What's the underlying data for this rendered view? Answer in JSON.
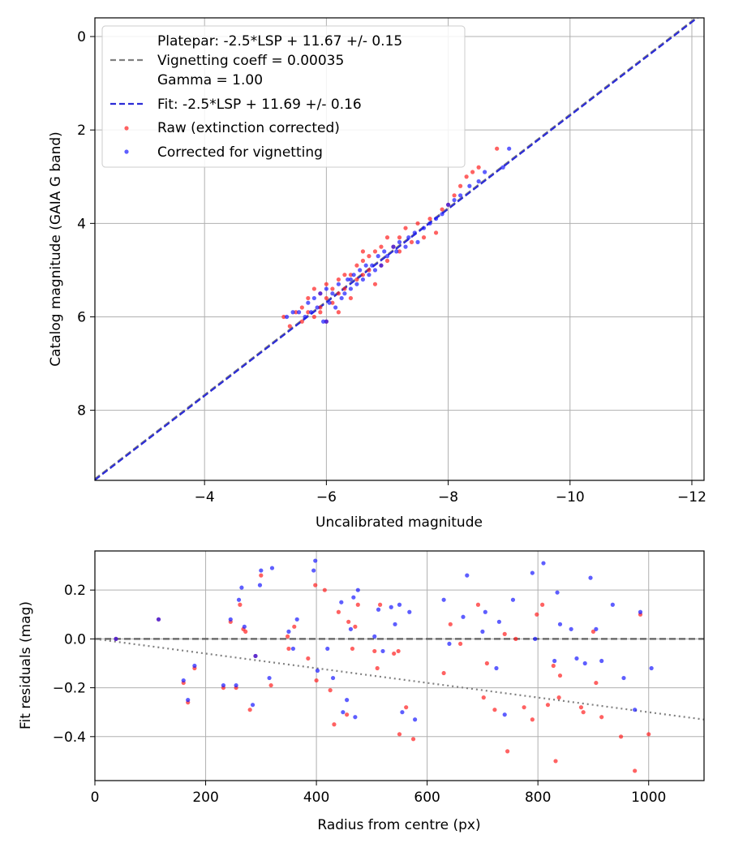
{
  "chart_data": [
    {
      "type": "scatter",
      "title": "",
      "xlabel": "Uncalibrated magnitude",
      "ylabel": "Catalog magnitude (GAIA G band)",
      "xlim": [
        -2.2,
        -12.2
      ],
      "ylim": [
        9.5,
        -0.4
      ],
      "xticks": [
        -4,
        -6,
        -8,
        -10,
        -12
      ],
      "xtick_labels": [
        "−4",
        "−6",
        "−8",
        "−10",
        "−12"
      ],
      "yticks": [
        0,
        2,
        4,
        6,
        8
      ],
      "ytick_labels": [
        "0",
        "2",
        "4",
        "6",
        "8"
      ],
      "grid": true,
      "legend_position": "top-left",
      "legend": {
        "platepar_line1": "Platepar: -2.5*LSP + 11.67 +/- 0.15",
        "platepar_line2": "Vignetting coeff = 0.00035",
        "platepar_line3": "Gamma = 1.00",
        "fit": "Fit: -2.5*LSP + 11.69 +/- 0.16",
        "raw": "Raw (extinction corrected)",
        "corrected": "Corrected for vignetting"
      },
      "lines": [
        {
          "name": "Platepar",
          "slope": 1,
          "intercept": 11.67,
          "color": "#808080",
          "style": "dashed"
        },
        {
          "name": "Fit",
          "slope": 1,
          "intercept": 11.69,
          "color": "#2b2bd6",
          "style": "dashed"
        }
      ],
      "series": [
        {
          "name": "Raw (extinction corrected)",
          "color": "#ff2020",
          "x": [
            -5.3,
            -5.4,
            -5.5,
            -5.6,
            -5.6,
            -5.7,
            -5.7,
            -5.8,
            -5.8,
            -5.9,
            -5.9,
            -6.0,
            -6.0,
            -6.0,
            -6.1,
            -6.1,
            -6.2,
            -6.2,
            -6.2,
            -6.3,
            -6.3,
            -6.4,
            -6.4,
            -6.5,
            -6.5,
            -6.6,
            -6.6,
            -6.7,
            -6.7,
            -6.8,
            -6.8,
            -6.9,
            -6.9,
            -7.0,
            -7.0,
            -7.1,
            -7.2,
            -7.2,
            -7.3,
            -7.4,
            -7.5,
            -7.6,
            -7.7,
            -7.8,
            -7.9,
            -8.0,
            -8.1,
            -8.2,
            -8.3,
            -8.4,
            -8.5,
            -8.8,
            -6.6,
            -5.9
          ],
          "y": [
            6.0,
            6.2,
            5.9,
            5.8,
            6.1,
            5.6,
            5.9,
            5.4,
            6.0,
            5.5,
            5.8,
            5.3,
            5.6,
            6.1,
            5.4,
            5.7,
            5.2,
            5.5,
            5.9,
            5.1,
            5.4,
            5.1,
            5.6,
            4.9,
            5.2,
            4.8,
            5.1,
            4.7,
            5.0,
            4.6,
            5.3,
            4.5,
            4.9,
            4.3,
            4.8,
            4.5,
            4.3,
            4.6,
            4.1,
            4.4,
            4.0,
            4.3,
            3.9,
            4.2,
            3.7,
            3.6,
            3.4,
            3.2,
            3.0,
            2.9,
            2.8,
            2.4,
            4.6,
            5.9
          ]
        },
        {
          "name": "Corrected for vignetting",
          "color": "#1a1aff",
          "x": [
            -5.35,
            -5.45,
            -5.55,
            -5.65,
            -5.7,
            -5.75,
            -5.8,
            -5.85,
            -5.9,
            -5.95,
            -6.0,
            -6.05,
            -6.1,
            -6.15,
            -6.2,
            -6.25,
            -6.3,
            -6.35,
            -6.4,
            -6.45,
            -6.5,
            -6.55,
            -6.6,
            -6.65,
            -6.7,
            -6.75,
            -6.8,
            -6.85,
            -6.9,
            -6.95,
            -7.0,
            -7.1,
            -7.15,
            -7.2,
            -7.3,
            -7.35,
            -7.45,
            -7.5,
            -7.6,
            -7.7,
            -7.8,
            -7.9,
            -8.0,
            -8.1,
            -8.2,
            -8.35,
            -8.5,
            -8.6,
            -8.9,
            -9.0,
            -6.0,
            -6.4
          ],
          "y": [
            6.0,
            5.9,
            5.9,
            6.0,
            5.7,
            5.9,
            5.6,
            5.8,
            5.5,
            6.1,
            5.4,
            5.7,
            5.5,
            5.8,
            5.3,
            5.6,
            5.5,
            5.2,
            5.4,
            5.1,
            5.3,
            5.0,
            5.2,
            4.9,
            5.1,
            4.9,
            5.0,
            4.7,
            4.9,
            4.6,
            4.7,
            4.5,
            4.6,
            4.4,
            4.5,
            4.3,
            4.2,
            4.4,
            4.1,
            4.0,
            3.9,
            3.8,
            3.6,
            3.5,
            3.4,
            3.2,
            3.1,
            2.9,
            2.8,
            2.4,
            6.1,
            5.2
          ]
        }
      ]
    },
    {
      "type": "scatter",
      "title": "",
      "xlabel": "Radius from centre (px)",
      "ylabel": "Fit residuals (mag)",
      "xlim": [
        0,
        1100
      ],
      "ylim": [
        -0.58,
        0.36
      ],
      "xticks": [
        0,
        200,
        400,
        600,
        800,
        1000
      ],
      "xtick_labels": [
        "0",
        "200",
        "400",
        "600",
        "800",
        "1000"
      ],
      "yticks": [
        0.2,
        0.0,
        -0.2,
        -0.4
      ],
      "ytick_labels": [
        "0.2",
        "0.0",
        "−0.2",
        "−0.4"
      ],
      "grid": true,
      "lines": [
        {
          "name": "zero",
          "points": [
            [
              0,
              0
            ],
            [
              1100,
              0
            ]
          ],
          "color": "#606060",
          "style": "dashed"
        },
        {
          "name": "vignetting model",
          "points": [
            [
              0,
              0
            ],
            [
              1100,
              -0.33
            ]
          ],
          "color": "#808080",
          "style": "dotted"
        }
      ],
      "series": [
        {
          "name": "Raw (extinction corrected)",
          "color": "#ff2020",
          "x": [
            38,
            115,
            160,
            168,
            180,
            232,
            245,
            255,
            262,
            268,
            272,
            280,
            290,
            300,
            318,
            348,
            350,
            360,
            385,
            398,
            400,
            415,
            425,
            432,
            440,
            455,
            458,
            465,
            470,
            475,
            505,
            510,
            515,
            540,
            548,
            550,
            562,
            575,
            630,
            642,
            660,
            692,
            702,
            708,
            722,
            740,
            745,
            760,
            775,
            790,
            798,
            808,
            818,
            828,
            832,
            838,
            840,
            878,
            882,
            900,
            905,
            915,
            950,
            975,
            985,
            1000
          ],
          "y": [
            0,
            0.08,
            -0.18,
            -0.26,
            -0.12,
            -0.2,
            0.07,
            -0.2,
            0.14,
            0.04,
            0.03,
            -0.29,
            -0.07,
            0.26,
            -0.19,
            0.01,
            -0.04,
            0.05,
            -0.08,
            0.22,
            -0.17,
            0.2,
            -0.21,
            -0.35,
            0.11,
            -0.31,
            0.07,
            -0.04,
            0.05,
            0.14,
            -0.05,
            -0.12,
            0.14,
            -0.06,
            -0.05,
            -0.39,
            -0.28,
            -0.41,
            -0.14,
            0.06,
            -0.02,
            0.14,
            -0.24,
            -0.1,
            -0.29,
            0.02,
            -0.46,
            0.0,
            -0.28,
            -0.33,
            0.1,
            0.14,
            -0.27,
            -0.11,
            -0.5,
            -0.24,
            -0.15,
            -0.28,
            -0.3,
            0.03,
            -0.18,
            -0.32,
            -0.4,
            -0.54,
            0.1,
            -0.39
          ]
        },
        {
          "name": "Corrected for vignetting",
          "color": "#1a1aff",
          "x": [
            38,
            115,
            160,
            168,
            180,
            232,
            245,
            255,
            260,
            265,
            270,
            285,
            290,
            298,
            300,
            315,
            320,
            350,
            358,
            365,
            395,
            398,
            402,
            420,
            430,
            445,
            448,
            455,
            462,
            467,
            470,
            475,
            505,
            512,
            520,
            535,
            542,
            550,
            555,
            568,
            578,
            630,
            640,
            665,
            672,
            700,
            705,
            725,
            730,
            740,
            755,
            790,
            795,
            810,
            830,
            835,
            840,
            860,
            870,
            885,
            895,
            905,
            915,
            935,
            955,
            975,
            985,
            1005
          ],
          "y": [
            0,
            0.08,
            -0.17,
            -0.25,
            -0.11,
            -0.19,
            0.08,
            -0.19,
            0.16,
            0.21,
            0.05,
            -0.27,
            -0.07,
            0.22,
            0.28,
            -0.16,
            0.29,
            0.03,
            -0.04,
            0.08,
            0.28,
            0.32,
            -0.13,
            -0.04,
            -0.16,
            0.15,
            -0.3,
            -0.25,
            0.04,
            0.17,
            -0.32,
            0.2,
            0.01,
            0.12,
            -0.05,
            0.13,
            0.06,
            0.14,
            -0.3,
            0.11,
            -0.33,
            0.16,
            -0.02,
            0.09,
            0.26,
            0.03,
            0.11,
            -0.12,
            0.07,
            -0.31,
            0.16,
            0.27,
            0.0,
            0.31,
            -0.09,
            0.19,
            0.06,
            0.04,
            -0.08,
            -0.1,
            0.25,
            0.04,
            -0.09,
            0.14,
            -0.16,
            -0.29,
            0.11,
            -0.12
          ]
        }
      ]
    }
  ]
}
